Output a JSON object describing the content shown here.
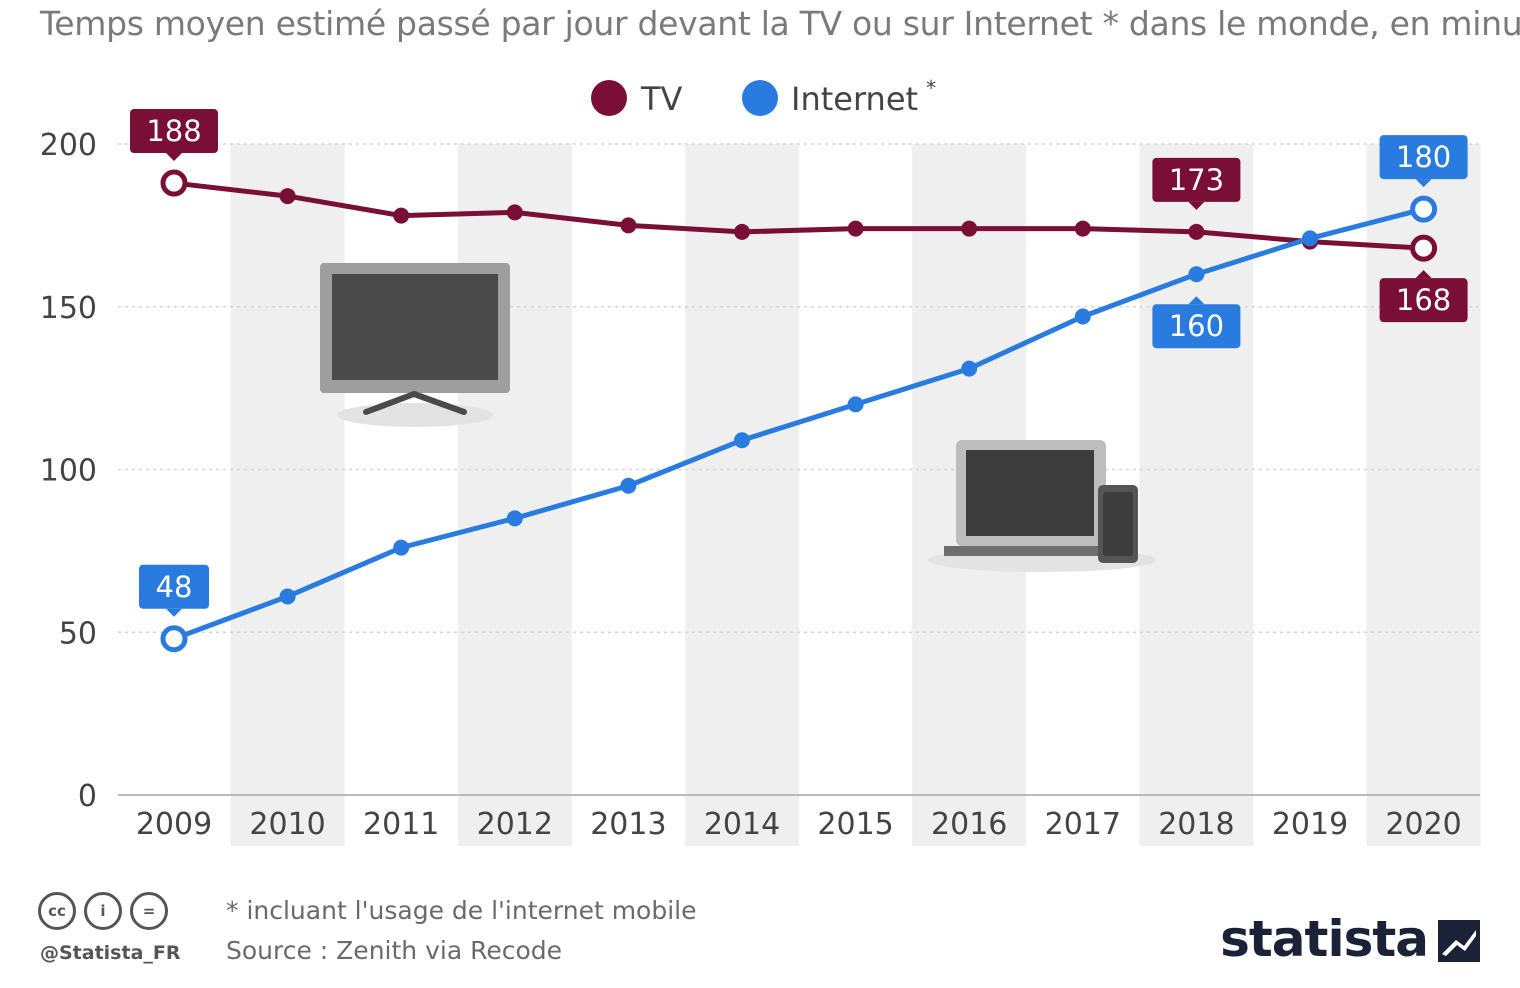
{
  "chart_data": {
    "type": "line",
    "title": "Temps moyen estimé passé par jour devant la TV ou sur Internet * dans le monde, en minutes",
    "categories": [
      "2009",
      "2010",
      "2011",
      "2012",
      "2013",
      "2014",
      "2015",
      "2016",
      "2017",
      "2018",
      "2019",
      "2020"
    ],
    "ylim": [
      0,
      200
    ],
    "yticks": [
      0,
      50,
      100,
      150,
      200
    ],
    "xlabel": "",
    "ylabel": "",
    "legend_position": "top-center",
    "grid": true,
    "series": [
      {
        "name": "TV",
        "color": "#7a0f35",
        "values": [
          188,
          184,
          178,
          179,
          175,
          173,
          174,
          174,
          174,
          173,
          170,
          168
        ],
        "labels": [
          {
            "index": 0,
            "text": "188",
            "placement": "above"
          },
          {
            "index": 9,
            "text": "173",
            "placement": "above"
          },
          {
            "index": 11,
            "text": "168",
            "placement": "below"
          }
        ]
      },
      {
        "name": "Internet",
        "legend_suffix": "*",
        "color": "#2a7be0",
        "values": [
          48,
          61,
          76,
          85,
          95,
          109,
          120,
          131,
          147,
          160,
          171,
          180
        ],
        "labels": [
          {
            "index": 0,
            "text": "48",
            "placement": "above"
          },
          {
            "index": 9,
            "text": "160",
            "placement": "below"
          },
          {
            "index": 11,
            "text": "180",
            "placement": "above"
          }
        ]
      }
    ]
  },
  "footer": {
    "note": "* incluant l'usage de l'internet mobile",
    "source": "Source : Zenith via Recode",
    "handle": "@Statista_FR",
    "cc_labels": [
      "cc",
      "i",
      "="
    ],
    "brand": "statista"
  }
}
